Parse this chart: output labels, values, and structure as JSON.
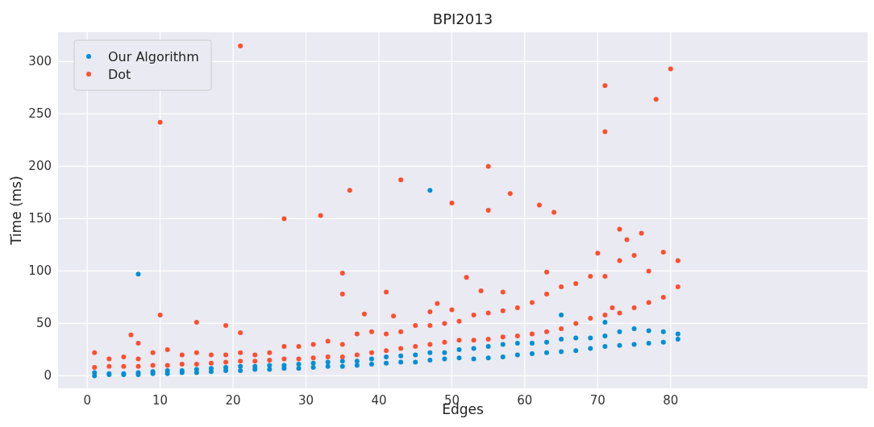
{
  "chart_data": {
    "type": "scatter",
    "title": "BPI2013",
    "xlabel": "Edges",
    "ylabel": "Time (ms)",
    "xlim": [
      -4,
      107
    ],
    "ylim": [
      -12,
      328
    ],
    "xticks": [
      0,
      10,
      20,
      30,
      40,
      50,
      60,
      70,
      80
    ],
    "yticks": [
      0,
      50,
      100,
      150,
      200,
      250,
      300
    ],
    "grid": true,
    "legend": "top left",
    "marker": "circle",
    "series": [
      {
        "name": "Our Algorithm",
        "color": "#008fd5",
        "x": [
          1,
          3,
          5,
          7,
          9,
          11,
          13,
          15,
          17,
          19,
          21,
          23,
          25,
          27,
          29,
          31,
          33,
          35,
          37,
          39,
          41,
          43,
          45,
          47,
          49,
          51,
          53,
          55,
          57,
          59,
          61,
          63,
          65,
          67,
          69,
          71,
          73,
          75,
          77,
          79,
          81,
          1,
          3,
          5,
          7,
          9,
          11,
          13,
          15,
          17,
          19,
          21,
          23,
          25,
          27,
          29,
          31,
          33,
          35,
          37,
          39,
          41,
          43,
          45,
          47,
          49,
          51,
          53,
          55,
          57,
          59,
          61,
          63,
          65,
          67,
          69,
          71,
          73,
          75,
          77,
          79,
          81,
          7,
          47,
          71,
          65
        ],
        "values": [
          0,
          1,
          1,
          1,
          2,
          2,
          3,
          3,
          4,
          5,
          5,
          6,
          6,
          7,
          7,
          8,
          9,
          9,
          10,
          11,
          12,
          13,
          13,
          15,
          16,
          17,
          16,
          17,
          18,
          20,
          21,
          22,
          23,
          24,
          26,
          28,
          29,
          30,
          31,
          32,
          35,
          3,
          2,
          2,
          3,
          4,
          5,
          5,
          6,
          7,
          8,
          9,
          9,
          10,
          10,
          11,
          12,
          13,
          14,
          14,
          16,
          18,
          19,
          20,
          22,
          22,
          25,
          26,
          28,
          30,
          31,
          31,
          32,
          35,
          36,
          36,
          38,
          42,
          45,
          43,
          42,
          40,
          97,
          177,
          51,
          58
        ]
      },
      {
        "name": "Dot",
        "color": "#fc4f30",
        "x": [
          1,
          3,
          5,
          7,
          9,
          11,
          13,
          15,
          17,
          19,
          21,
          23,
          25,
          27,
          29,
          31,
          33,
          35,
          37,
          39,
          41,
          43,
          45,
          47,
          49,
          51,
          53,
          55,
          57,
          59,
          61,
          63,
          65,
          67,
          69,
          71,
          73,
          75,
          77,
          79,
          81,
          1,
          3,
          5,
          7,
          9,
          11,
          13,
          15,
          17,
          19,
          21,
          23,
          25,
          27,
          29,
          31,
          33,
          35,
          37,
          39,
          41,
          43,
          45,
          47,
          49,
          51,
          53,
          55,
          57,
          59,
          61,
          63,
          65,
          67,
          69,
          71,
          73,
          75,
          77,
          79,
          81,
          6,
          7,
          10,
          10,
          15,
          19,
          21,
          21,
          27,
          32,
          35,
          35,
          36,
          38,
          41,
          43,
          42,
          47,
          48,
          50,
          50,
          52,
          54,
          55,
          55,
          57,
          58,
          62,
          63,
          64,
          70,
          71,
          71,
          72,
          73,
          74,
          76,
          78,
          80
        ],
        "values": [
          8,
          9,
          9,
          9,
          10,
          10,
          11,
          11,
          12,
          13,
          14,
          14,
          15,
          16,
          16,
          17,
          18,
          18,
          20,
          22,
          24,
          26,
          28,
          30,
          32,
          34,
          34,
          35,
          37,
          38,
          40,
          42,
          45,
          50,
          55,
          58,
          60,
          65,
          70,
          75,
          85,
          22,
          16,
          18,
          16,
          22,
          25,
          20,
          22,
          20,
          20,
          22,
          20,
          22,
          28,
          28,
          30,
          33,
          30,
          40,
          42,
          40,
          42,
          48,
          48,
          50,
          52,
          58,
          60,
          62,
          65,
          70,
          78,
          85,
          88,
          95,
          95,
          110,
          115,
          100,
          118,
          110,
          39,
          31,
          242,
          58,
          51,
          48,
          315,
          41,
          150,
          153,
          98,
          78,
          177,
          59,
          80,
          187,
          57,
          61,
          69,
          165,
          63,
          94,
          81,
          200,
          158,
          80,
          174,
          163,
          99,
          156,
          117,
          277,
          233,
          65,
          140,
          130,
          136,
          264,
          293
        ]
      }
    ]
  }
}
